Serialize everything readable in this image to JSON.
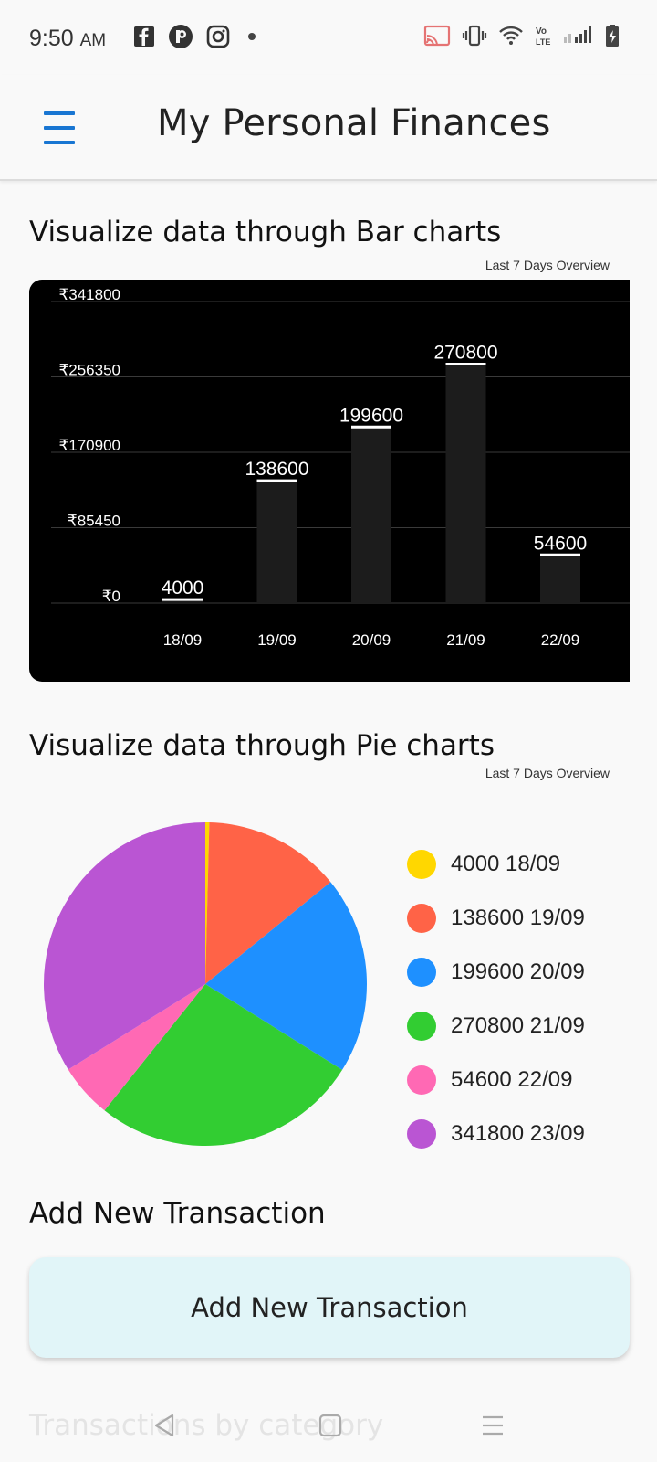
{
  "status": {
    "time": "9:50",
    "ampm": "AM"
  },
  "appbar": {
    "title": "My Personal Finances"
  },
  "bar_section": {
    "title": "Visualize data through Bar charts",
    "subtitle": "Last 7 Days Overview"
  },
  "pie_section": {
    "title": "Visualize data through Pie charts",
    "subtitle": "Last 7 Days Overview"
  },
  "chart_data": [
    {
      "type": "bar",
      "categories": [
        "18/09",
        "19/09",
        "20/09",
        "21/09",
        "22/09"
      ],
      "values": [
        4000,
        138600,
        199600,
        270800,
        54600
      ],
      "ytick_labels": [
        "₹0",
        "₹85450",
        "₹170900",
        "₹256350",
        "₹341800"
      ],
      "ylim": [
        0,
        341800
      ],
      "grid": true,
      "background": "#000000",
      "bar_color": "#1c1c1c"
    },
    {
      "type": "pie",
      "labels": [
        "4000 18/09",
        "138600 19/09",
        "199600 20/09",
        "270800 21/09",
        "54600 22/09",
        "341800 23/09"
      ],
      "values": [
        4000,
        138600,
        199600,
        270800,
        54600,
        341800
      ],
      "colors": [
        "#ffd700",
        "#ff6347",
        "#1e90ff",
        "#32cd32",
        "#ff69b4",
        "#ba55d3"
      ],
      "legend": "right"
    }
  ],
  "add_section": {
    "title": "Add New Transaction",
    "button_label": "Add New Transaction"
  },
  "peek": {
    "text": "Transactions by category"
  }
}
